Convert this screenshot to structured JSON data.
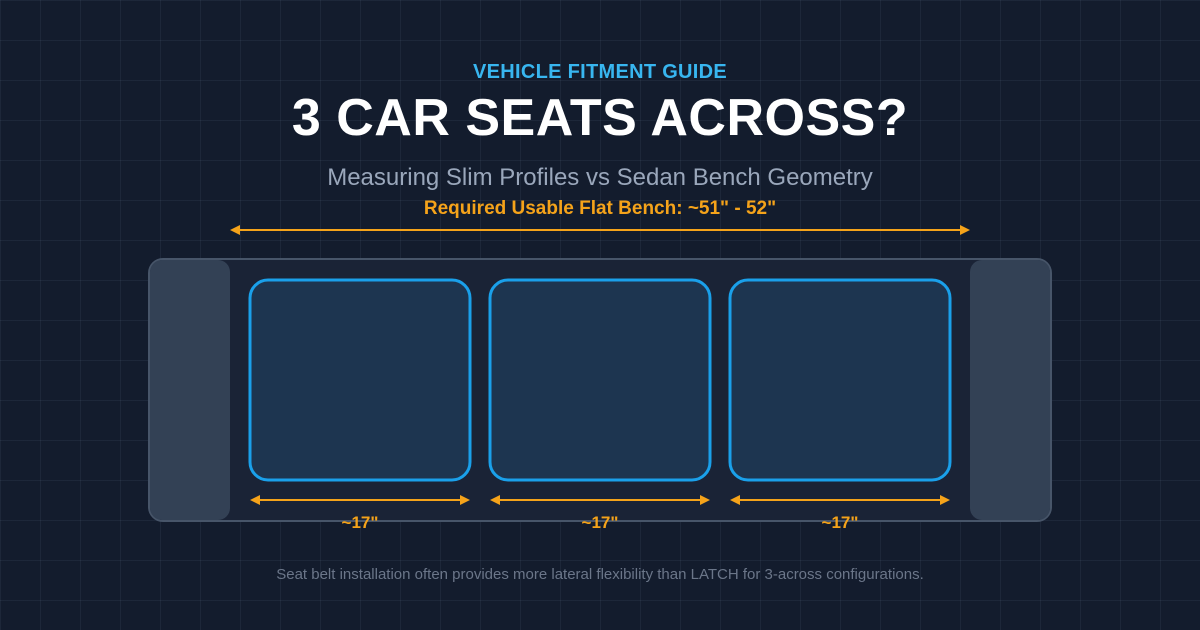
{
  "header": {
    "eyebrow": "VEHICLE FITMENT GUIDE",
    "title": "3 CAR SEATS ACROSS?",
    "subtitle": "Measuring Slim Profiles vs Sedan Bench Geometry"
  },
  "bench": {
    "required_label": "Required Usable Flat Bench: ~51\" - 52\"",
    "seats": [
      {
        "width_label": "~17\""
      },
      {
        "width_label": "~17\""
      },
      {
        "width_label": "~17\""
      }
    ]
  },
  "footnote": "Seat belt installation often provides more lateral flexibility than LATCH for 3-across configurations.",
  "colors": {
    "accent_blue": "#38b6f0",
    "accent_orange": "#f5a31a",
    "seat_fill": "#1d3550",
    "bench_fill": "#1a2336",
    "bolster_fill": "#334155"
  }
}
